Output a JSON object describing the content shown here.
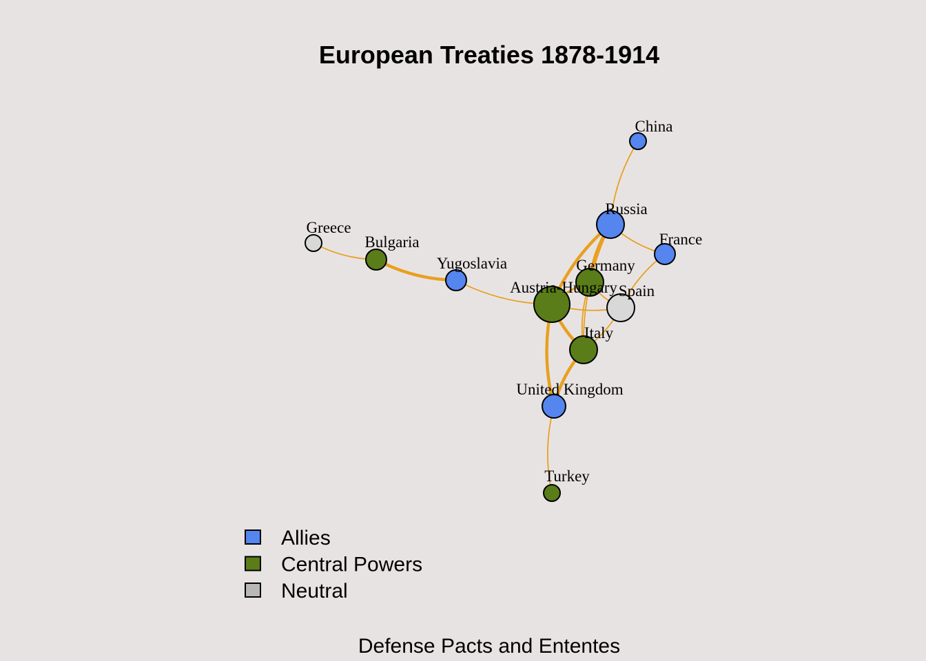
{
  "title": "European Treaties 1878-1914",
  "subtitle": "Defense Pacts and Ententes",
  "colors": {
    "background": "#e8e3e3",
    "edge": "#e8a020",
    "Allies": "#5585ee",
    "Central Powers": "#5a7d19",
    "Neutral": "#d8d8d8"
  },
  "legend": [
    {
      "label": "Allies",
      "color": "#5585ee"
    },
    {
      "label": "Central Powers",
      "color": "#5a7d19"
    },
    {
      "label": "Neutral",
      "color": "#b8b8b8"
    }
  ],
  "nodes": [
    {
      "name": "China",
      "group": "Allies"
    },
    {
      "name": "Russia",
      "group": "Allies"
    },
    {
      "name": "France",
      "group": "Allies"
    },
    {
      "name": "Greece",
      "group": "Neutral"
    },
    {
      "name": "Bulgaria",
      "group": "Central Powers"
    },
    {
      "name": "Yugoslavia",
      "group": "Allies"
    },
    {
      "name": "Germany",
      "group": "Central Powers"
    },
    {
      "name": "Austria-Hungary",
      "group": "Central Powers"
    },
    {
      "name": "Spain",
      "group": "Neutral"
    },
    {
      "name": "Italy",
      "group": "Central Powers"
    },
    {
      "name": "United Kingdom",
      "group": "Allies"
    },
    {
      "name": "Turkey",
      "group": "Central Powers"
    }
  ],
  "edges": [
    {
      "source": "China",
      "target": "Russia",
      "weight": 1
    },
    {
      "source": "Russia",
      "target": "France",
      "weight": 1
    },
    {
      "source": "Russia",
      "target": "Germany",
      "weight": 3
    },
    {
      "source": "Russia",
      "target": "Austria-Hungary",
      "weight": 3
    },
    {
      "source": "Russia",
      "target": "Italy",
      "weight": 1
    },
    {
      "source": "France",
      "target": "Spain",
      "weight": 1
    },
    {
      "source": "Greece",
      "target": "Bulgaria",
      "weight": 1
    },
    {
      "source": "Bulgaria",
      "target": "Yugoslavia",
      "weight": 3
    },
    {
      "source": "Yugoslavia",
      "target": "Austria-Hungary",
      "weight": 1
    },
    {
      "source": "Germany",
      "target": "Austria-Hungary",
      "weight": 2
    },
    {
      "source": "Germany",
      "target": "Italy",
      "weight": 1
    },
    {
      "source": "Germany",
      "target": "Spain",
      "weight": 1
    },
    {
      "source": "Austria-Hungary",
      "target": "Spain",
      "weight": 1
    },
    {
      "source": "Austria-Hungary",
      "target": "Italy",
      "weight": 3
    },
    {
      "source": "Austria-Hungary",
      "target": "United Kingdom",
      "weight": 3
    },
    {
      "source": "Italy",
      "target": "United Kingdom",
      "weight": 3
    },
    {
      "source": "Italy",
      "target": "Spain",
      "weight": 1
    },
    {
      "source": "United Kingdom",
      "target": "Turkey",
      "weight": 1
    }
  ]
}
